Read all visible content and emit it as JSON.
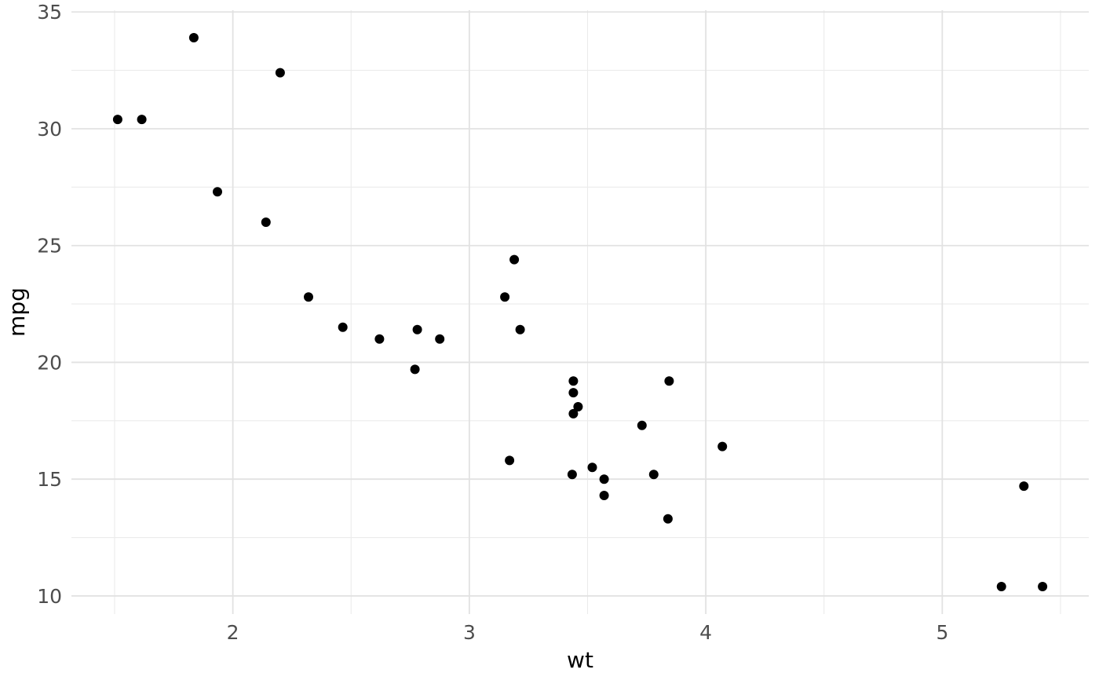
{
  "chart_data": {
    "type": "scatter",
    "title": "",
    "xlabel": "wt",
    "ylabel": "mpg",
    "x_ticks": [
      2,
      3,
      4,
      5
    ],
    "y_ticks": [
      10,
      15,
      20,
      25,
      30,
      35
    ],
    "x_minor_ticks": [
      1.5,
      2.5,
      3.5,
      4.5,
      5.5
    ],
    "y_minor_ticks": [
      12.5,
      17.5,
      22.5,
      27.5,
      32.5
    ],
    "xlim": [
      1.3174,
      5.6196
    ],
    "ylim": [
      9.225,
      35.075
    ],
    "grid": true,
    "legend": false,
    "points": [
      [
        2.62,
        21.0
      ],
      [
        2.875,
        21.0
      ],
      [
        2.32,
        22.8
      ],
      [
        3.215,
        21.4
      ],
      [
        3.44,
        18.7
      ],
      [
        3.46,
        18.1
      ],
      [
        3.57,
        14.3
      ],
      [
        3.19,
        24.4
      ],
      [
        3.15,
        22.8
      ],
      [
        3.44,
        19.2
      ],
      [
        3.44,
        17.8
      ],
      [
        4.07,
        16.4
      ],
      [
        3.73,
        17.3
      ],
      [
        3.78,
        15.2
      ],
      [
        5.25,
        10.4
      ],
      [
        5.424,
        10.4
      ],
      [
        5.345,
        14.7
      ],
      [
        2.2,
        32.4
      ],
      [
        1.615,
        30.4
      ],
      [
        1.835,
        33.9
      ],
      [
        2.465,
        21.5
      ],
      [
        3.52,
        15.5
      ],
      [
        3.435,
        15.2
      ],
      [
        3.84,
        13.3
      ],
      [
        3.845,
        19.2
      ],
      [
        1.935,
        27.3
      ],
      [
        2.14,
        26.0
      ],
      [
        1.513,
        30.4
      ],
      [
        3.17,
        15.8
      ],
      [
        2.77,
        19.7
      ],
      [
        3.57,
        15.0
      ],
      [
        2.78,
        21.4
      ]
    ]
  },
  "style": {
    "background_color": "#FFFFFF",
    "point_color": "#000000",
    "point_radius": 6,
    "grid_major_color": "#E2E2E2",
    "grid_minor_color": "#EBEBEB",
    "tick_label_color": "#4D4D4D",
    "axis_title_color": "#000000"
  }
}
